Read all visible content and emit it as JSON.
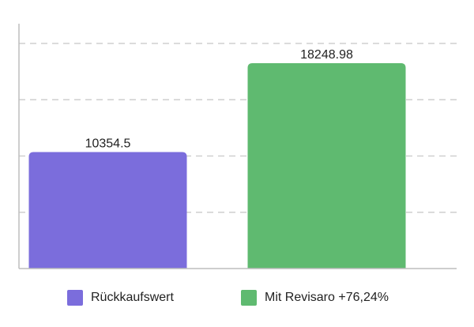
{
  "chart_data": {
    "type": "bar",
    "categories": [
      "Rückkaufswert",
      "Mit Revisaro +76,24%"
    ],
    "values": [
      10354.5,
      18248.98
    ],
    "data_labels": [
      "10354.5",
      "18248.98"
    ],
    "colors": [
      "#7b6ddc",
      "#5fba70"
    ],
    "title": "",
    "xlabel": "",
    "ylabel": "",
    "ylim": [
      0,
      20000
    ],
    "grid": true,
    "legend": {
      "placement": "bottom",
      "entries": [
        "Rückkaufswert",
        "Mit Revisaro +76,24%"
      ]
    }
  }
}
